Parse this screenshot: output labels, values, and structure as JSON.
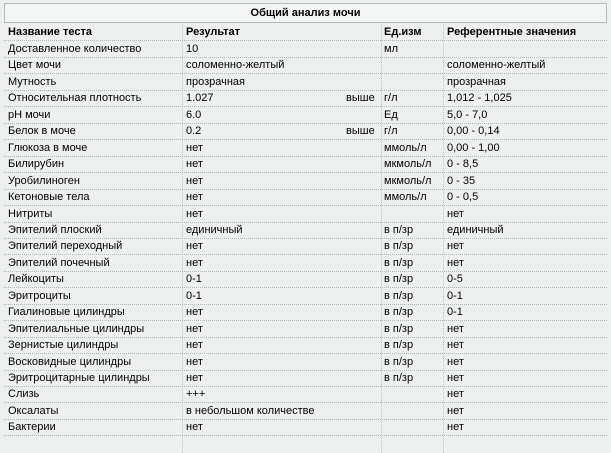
{
  "title": "Общий анализ мочи",
  "table": {
    "header": {
      "name": "Название теста",
      "result": "Результат",
      "unit": "Ед.изм",
      "ref": "Референтные значения"
    },
    "rows": [
      {
        "name": "Доставленное количество",
        "result": "10",
        "unit": "мл"
      },
      {
        "name": "Цвет мочи",
        "result": "соломенно-желтый",
        "ref": "соломенно-желтый"
      },
      {
        "name": "Мутность",
        "result": "прозрачная",
        "ref": "прозрачная"
      },
      {
        "name": "Относительная плотность",
        "result": "1.027",
        "flag": "выше",
        "unit": "г/л",
        "ref": "1,012 - 1,025"
      },
      {
        "name": "pH мочи",
        "result": "6.0",
        "unit": "Ед",
        "ref": "5,0 - 7,0"
      },
      {
        "name": "Белок в моче",
        "result": "0.2",
        "flag": "выше",
        "unit": "г/л",
        "ref": "0,00 - 0,14"
      },
      {
        "name": "Глюкоза в моче",
        "result": "нет",
        "unit": "ммоль/л",
        "ref": "0,00 - 1,00"
      },
      {
        "name": "Билирубин",
        "result": "нет",
        "unit": "мкмоль/л",
        "ref": "0 - 8,5"
      },
      {
        "name": "Уробилиноген",
        "result": "нет",
        "unit": "мкмоль/л",
        "ref": "0 - 35"
      },
      {
        "name": "Кетоновые тела",
        "result": "нет",
        "unit": "ммоль/л",
        "ref": "0 - 0,5"
      },
      {
        "name": "Нитриты",
        "result": "нет",
        "ref": "нет"
      },
      {
        "name": "Эпителий плоский",
        "result": "единичный",
        "unit": "в п/зр",
        "ref": "единичный"
      },
      {
        "name": "Эпителий переходный",
        "result": "нет",
        "unit": "в п/зр",
        "ref": "нет"
      },
      {
        "name": "Эпителий почечный",
        "result": "нет",
        "unit": "в п/зр",
        "ref": "нет"
      },
      {
        "name": "Лейкоциты",
        "result": "0-1",
        "unit": "в п/зр",
        "ref": "0-5"
      },
      {
        "name": "Эритроциты",
        "result": "0-1",
        "unit": "в п/зр",
        "ref": "0-1"
      },
      {
        "name": "Гиалиновые цилиндры",
        "result": "нет",
        "unit": "в п/зр",
        "ref": "0-1"
      },
      {
        "name": "Эпителиальные цилиндры",
        "result": "нет",
        "unit": "в п/зр",
        "ref": "нет"
      },
      {
        "name": "Зернистые цилиндры",
        "result": "нет",
        "unit": "в п/зр",
        "ref": "нет"
      },
      {
        "name": "Восковидные цилиндры",
        "result": "нет",
        "unit": "в п/зр",
        "ref": "нет"
      },
      {
        "name": "Эритроцитарные цилиндры",
        "result": "нет",
        "unit": "в п/зр",
        "ref": "нет"
      },
      {
        "name": "Слизь",
        "result": "+++",
        "ref": "нет"
      },
      {
        "name": "Оксалаты",
        "result": "в небольшом количестве",
        "ref": "нет"
      },
      {
        "name": "Бактерии",
        "result": "нет",
        "ref": "нет"
      }
    ]
  }
}
